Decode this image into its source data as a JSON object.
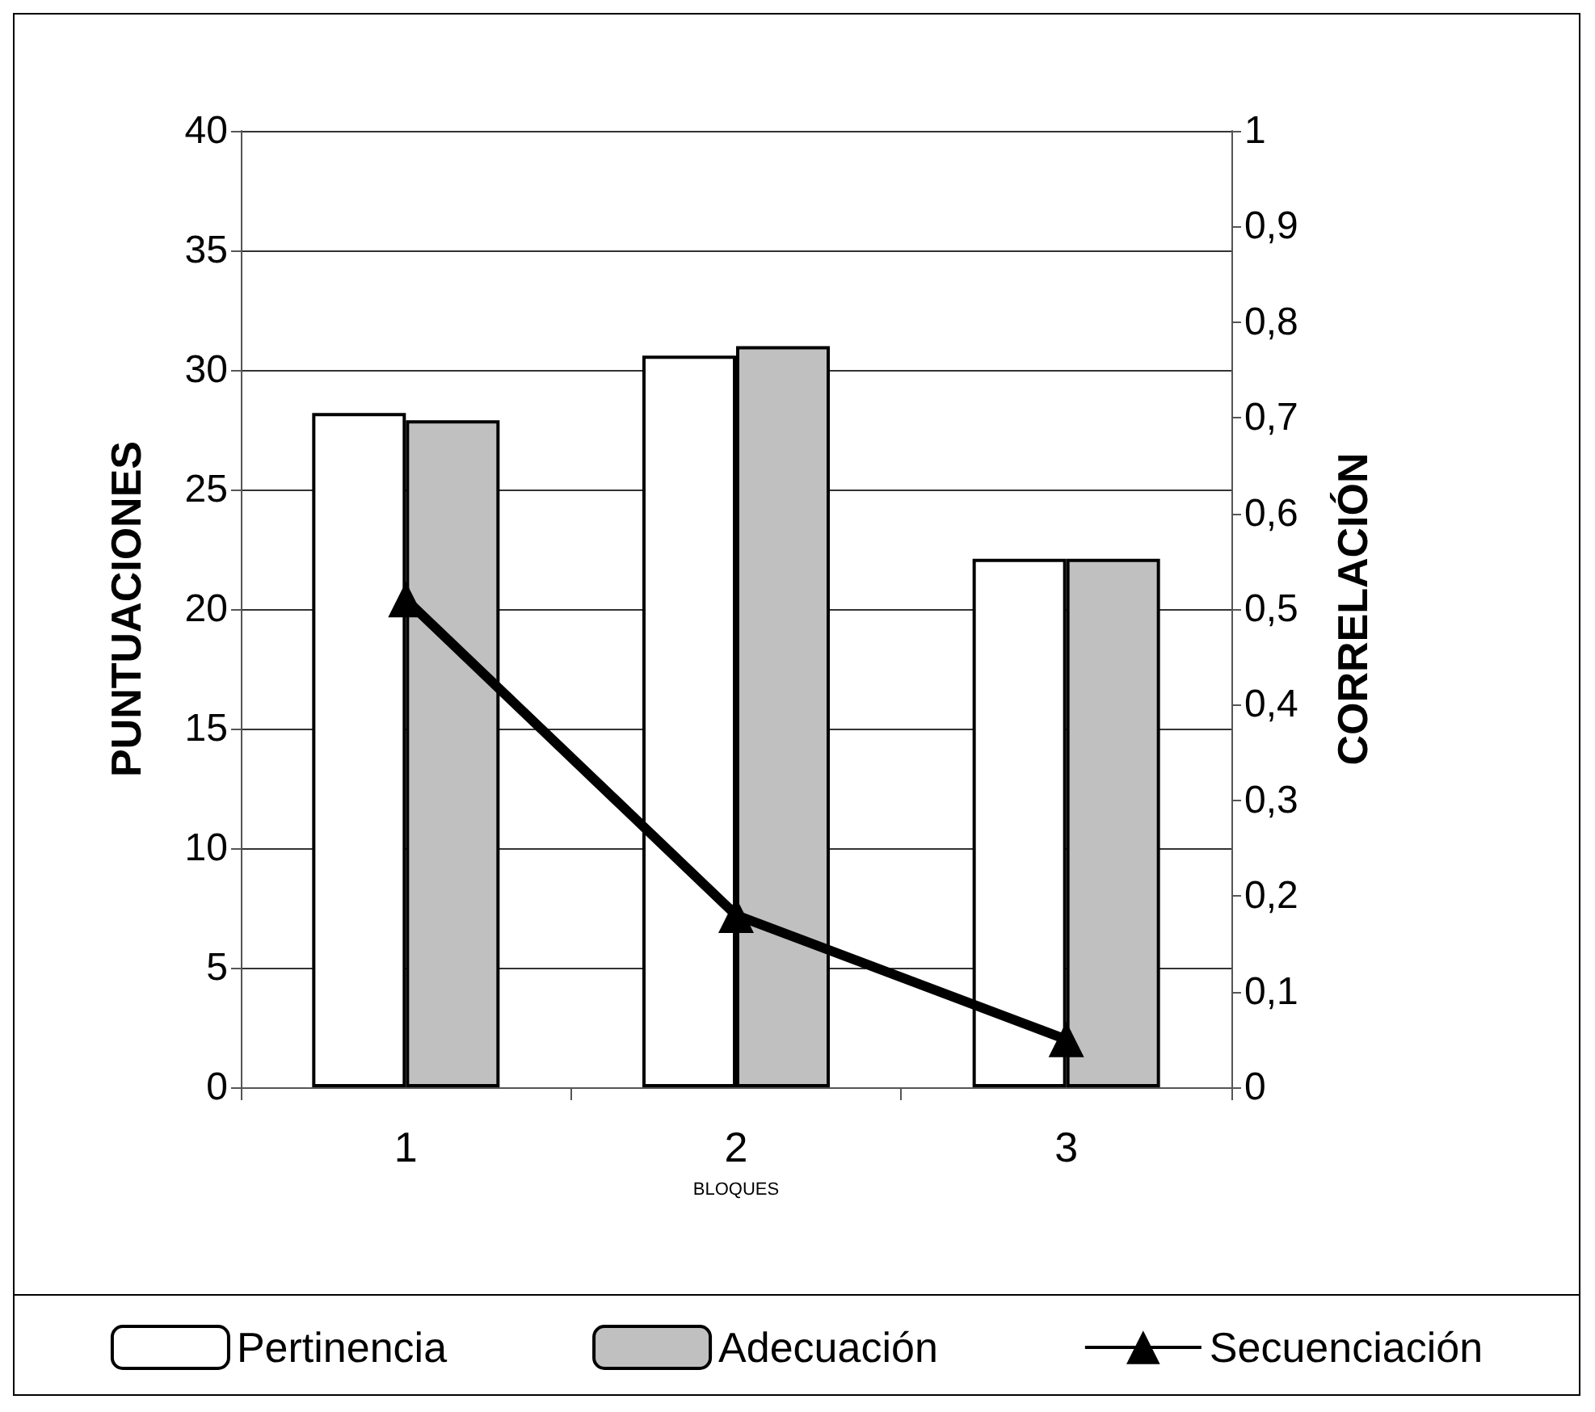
{
  "chart_data": {
    "type": "bar",
    "xlabel": "BLOQUES",
    "ylabel": "PUNTUACIONES",
    "y2label": "CORRELACIÓN",
    "categories": [
      "1",
      "2",
      "3"
    ],
    "series": [
      {
        "name": "Pertinencia",
        "color": "#ffffff",
        "values": [
          28.2,
          30.6,
          22.1
        ]
      },
      {
        "name": "Adecuación",
        "color": "#c0c0c0",
        "values": [
          27.9,
          31.0,
          22.1
        ]
      },
      {
        "name": "Secuenciación",
        "type": "line",
        "axis": "y2",
        "color": "#000000",
        "marker": "triangle",
        "values": [
          0.51,
          0.18,
          0.05
        ]
      }
    ],
    "ylim": [
      0,
      40
    ],
    "yticks": [
      0,
      5,
      10,
      15,
      20,
      25,
      30,
      35,
      40
    ],
    "y2lim": [
      0,
      1
    ],
    "y2ticks": [
      0,
      {
        "value": 0.1,
        "label": "0,1"
      },
      {
        "value": 0.2,
        "label": "0,2"
      },
      {
        "value": 0.3,
        "label": "0,3"
      },
      {
        "value": 0.4,
        "label": "0,4"
      },
      {
        "value": 0.5,
        "label": "0,5"
      },
      {
        "value": 0.6,
        "label": "0,6"
      },
      {
        "value": 0.7,
        "label": "0,7"
      },
      {
        "value": 0.8,
        "label": "0,8"
      },
      {
        "value": 0.9,
        "label": "0,9"
      },
      1
    ],
    "grid": "y",
    "legend": "bottom"
  }
}
